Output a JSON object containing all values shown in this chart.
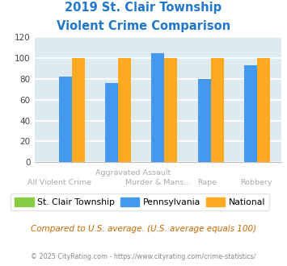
{
  "title_line1": "2019 St. Clair Township",
  "title_line2": "Violent Crime Comparison",
  "title_color": "#2277cc",
  "groups": [
    "All Violent Crime",
    "Aggravated Assault",
    "Murder & Mans...",
    "Rape",
    "Robbery"
  ],
  "st_clair": [
    0,
    0,
    0,
    0,
    0
  ],
  "pennsylvania": [
    82,
    76,
    105,
    80,
    93
  ],
  "national": [
    100,
    100,
    100,
    100,
    100
  ],
  "color_st_clair": "#88cc44",
  "color_pennsylvania": "#4499ee",
  "color_national": "#ffaa22",
  "ylim": [
    0,
    120
  ],
  "yticks": [
    0,
    20,
    40,
    60,
    80,
    100,
    120
  ],
  "bg_color": "#ddeaf0",
  "grid_color": "#ffffff",
  "legend_labels": [
    "St. Clair Township",
    "Pennsylvania",
    "National"
  ],
  "footnote1": "Compared to U.S. average. (U.S. average equals 100)",
  "footnote2": "© 2025 CityRating.com - https://www.cityrating.com/crime-statistics/",
  "footnote1_color": "#cc6600",
  "footnote2_color": "#888888",
  "fig_bg": "#ffffff",
  "xlabel_color": "#aaaaaa",
  "xlabel_top": "Aggravated Assault",
  "xlabel_top_pos": 1.5,
  "xlabel_bot_0": "All Violent Crime",
  "xlabel_bot_2": "Murder & Mans...",
  "xlabel_bot_3": "Rape",
  "xlabel_bot_4": "Robbery"
}
